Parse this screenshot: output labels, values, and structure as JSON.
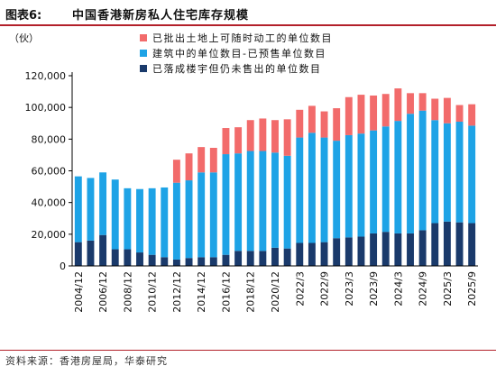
{
  "header": {
    "figure_label": "图表6:",
    "title": "中国香港新房私人住宅库存规模"
  },
  "source": "资料来源：香港房屋局，华泰研究",
  "colors": {
    "not_started": "#f26b6b",
    "under_construction": "#1ea3e6",
    "completed_unsold": "#1a3a6b",
    "accent_rule": "#b3202a"
  },
  "chart_data": {
    "type": "bar",
    "stacked": true,
    "unit": "（伙）",
    "ylim": [
      0,
      120000
    ],
    "yticks": [
      "0",
      "20,000",
      "40,000",
      "60,000",
      "80,000",
      "100,000",
      "120,000"
    ],
    "ytick_values": [
      0,
      20000,
      40000,
      60000,
      80000,
      100000,
      120000
    ],
    "legend_position": "top-center",
    "categories": [
      "2004/12",
      "2005/12",
      "2006/12",
      "2007/12",
      "2008/12",
      "2009/12",
      "2010/12",
      "2011/12",
      "2012/12",
      "2013/12",
      "2014/12",
      "2015/12",
      "2016/12",
      "2017/12",
      "2018/12",
      "2019/12",
      "2020/12",
      "2021/12",
      "2022/3",
      "2022/6",
      "2022/9",
      "2022/12",
      "2023/3",
      "2023/6",
      "2023/9",
      "2023/12",
      "2024/3",
      "2024/6",
      "2024/9",
      "2024/12",
      "2025/3",
      "2025/6",
      "2025/9"
    ],
    "xtick_labels": [
      "2004/12",
      "",
      "2006/12",
      "",
      "2008/12",
      "",
      "2010/12",
      "",
      "2012/12",
      "",
      "2014/12",
      "",
      "2016/12",
      "",
      "2018/12",
      "",
      "2020/12",
      "",
      "2022/3",
      "",
      "2022/9",
      "",
      "2023/3",
      "",
      "2023/9",
      "",
      "2024/3",
      "",
      "2024/9",
      "",
      "2025/3",
      "",
      "2025/9"
    ],
    "series": [
      {
        "name": "已落成楼宇但仍未售出的单位数目",
        "color_key": "completed_unsold",
        "values": [
          15000,
          16000,
          19500,
          10500,
          10500,
          8500,
          7000,
          5500,
          4000,
          5000,
          5500,
          5500,
          7000,
          9500,
          9500,
          9500,
          11500,
          11000,
          14500,
          14500,
          15000,
          17500,
          18000,
          18500,
          20500,
          21500,
          20500,
          20500,
          22500,
          27000,
          28000,
          27500,
          27000
        ]
      },
      {
        "name": "建筑中的单位数目-已预售单位数目",
        "color_key": "under_construction",
        "values": [
          41500,
          39500,
          39500,
          44000,
          38500,
          40000,
          42000,
          44000,
          48500,
          49000,
          53500,
          53500,
          63500,
          61500,
          63000,
          63000,
          60000,
          58500,
          66500,
          69500,
          66000,
          61500,
          64500,
          65000,
          65000,
          66500,
          71000,
          75500,
          75500,
          65000,
          62000,
          63500,
          61500
        ]
      },
      {
        "name": "已批出土地上可随时动工的单位数目",
        "color_key": "not_started",
        "values": [
          0,
          0,
          0,
          0,
          0,
          0,
          0,
          0,
          14500,
          17000,
          16000,
          15500,
          16500,
          16500,
          19500,
          20500,
          20500,
          23000,
          17500,
          17000,
          16500,
          20500,
          24000,
          24500,
          22000,
          20500,
          20500,
          13000,
          11000,
          13500,
          16000,
          10500,
          13500
        ]
      }
    ]
  }
}
